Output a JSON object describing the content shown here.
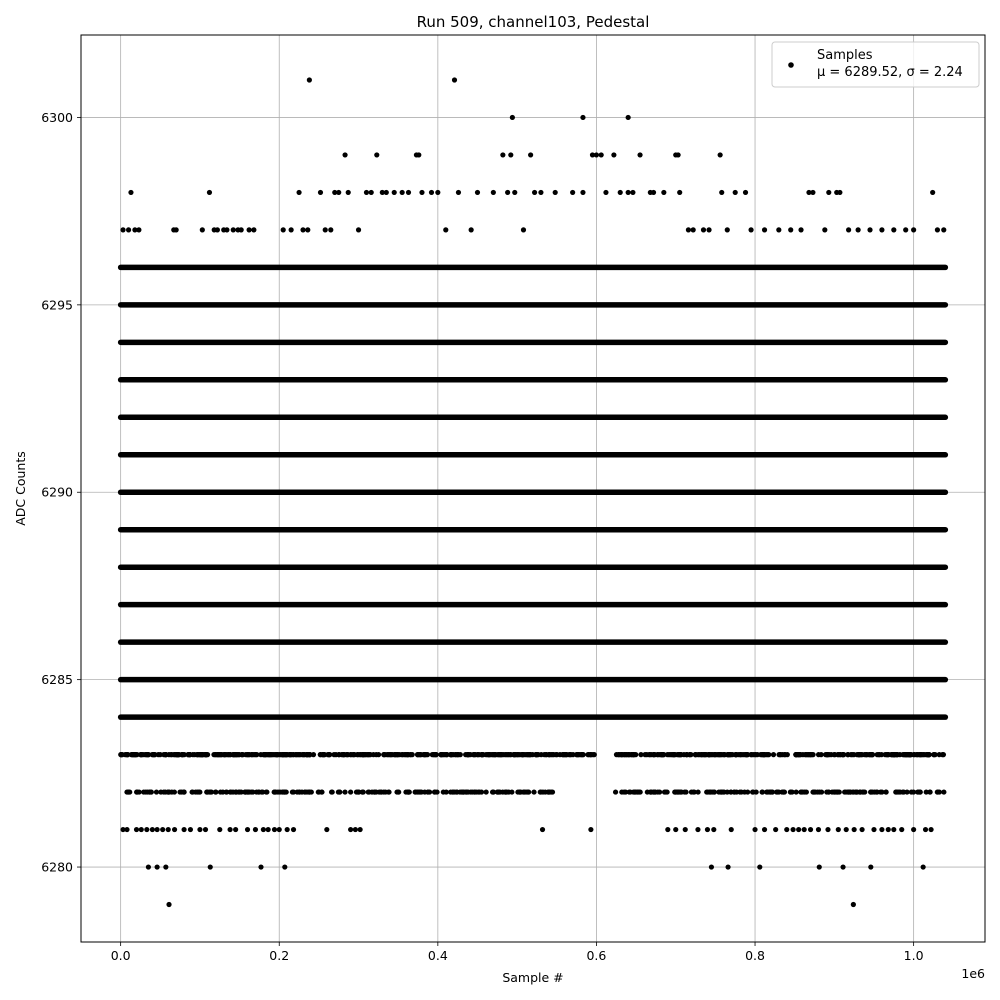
{
  "chart_data": {
    "type": "scatter",
    "title": "Run 509, channel103, Pedestal",
    "xlabel": "Sample #",
    "ylabel": "ADC Counts",
    "x_offset_label": "1e6",
    "xlim": [
      -0.05,
      1.09
    ],
    "ylim": [
      6278,
      6302.2
    ],
    "x_ticks": [
      0.0,
      0.2,
      0.4,
      0.6,
      0.8,
      1.0
    ],
    "x_tick_labels": [
      "0.0",
      "0.2",
      "0.4",
      "0.6",
      "0.8",
      "1.0"
    ],
    "y_ticks": [
      6280,
      6285,
      6290,
      6295,
      6300
    ],
    "y_tick_labels": [
      "6280",
      "6285",
      "6290",
      "6295",
      "6300"
    ],
    "grid": true,
    "legend_position": "top-right",
    "marker_color": "#000000",
    "series": [
      {
        "name": "Samples",
        "stats_label": "μ = 6289.52, σ = 2.24",
        "dense_levels": [
          {
            "y": 6284,
            "x_range": [
              0.0,
              1.04
            ]
          },
          {
            "y": 6285,
            "x_range": [
              0.0,
              1.04
            ]
          },
          {
            "y": 6286,
            "x_range": [
              0.0,
              1.04
            ]
          },
          {
            "y": 6287,
            "x_range": [
              0.0,
              1.04
            ]
          },
          {
            "y": 6288,
            "x_range": [
              0.0,
              1.04
            ]
          },
          {
            "y": 6289,
            "x_range": [
              0.0,
              1.04
            ]
          },
          {
            "y": 6290,
            "x_range": [
              0.0,
              1.04
            ]
          },
          {
            "y": 6291,
            "x_range": [
              0.0,
              1.04
            ]
          },
          {
            "y": 6292,
            "x_range": [
              0.0,
              1.04
            ]
          },
          {
            "y": 6293,
            "x_range": [
              0.0,
              1.04
            ]
          },
          {
            "y": 6294,
            "x_range": [
              0.0,
              1.04
            ]
          },
          {
            "y": 6295,
            "x_range": [
              0.0,
              1.04
            ]
          },
          {
            "y": 6296,
            "x_range": [
              0.0,
              1.04
            ]
          }
        ],
        "sparse_points": [
          [
            0.003,
            6297
          ],
          [
            0.01,
            6297
          ],
          [
            0.013,
            6298
          ],
          [
            0.018,
            6297
          ],
          [
            0.023,
            6297
          ],
          [
            0.067,
            6297
          ],
          [
            0.07,
            6297
          ],
          [
            0.103,
            6297
          ],
          [
            0.112,
            6298
          ],
          [
            0.118,
            6297
          ],
          [
            0.122,
            6297
          ],
          [
            0.13,
            6297
          ],
          [
            0.134,
            6297
          ],
          [
            0.142,
            6297
          ],
          [
            0.148,
            6297
          ],
          [
            0.152,
            6297
          ],
          [
            0.162,
            6297
          ],
          [
            0.168,
            6297
          ],
          [
            0.205,
            6297
          ],
          [
            0.215,
            6297
          ],
          [
            0.225,
            6298
          ],
          [
            0.23,
            6297
          ],
          [
            0.236,
            6297
          ],
          [
            0.252,
            6298
          ],
          [
            0.258,
            6297
          ],
          [
            0.265,
            6297
          ],
          [
            0.27,
            6298
          ],
          [
            0.275,
            6298
          ],
          [
            0.283,
            6299
          ],
          [
            0.287,
            6298
          ],
          [
            0.3,
            6297
          ],
          [
            0.31,
            6298
          ],
          [
            0.316,
            6298
          ],
          [
            0.323,
            6299
          ],
          [
            0.33,
            6298
          ],
          [
            0.335,
            6298
          ],
          [
            0.345,
            6298
          ],
          [
            0.355,
            6298
          ],
          [
            0.363,
            6298
          ],
          [
            0.373,
            6299
          ],
          [
            0.376,
            6299
          ],
          [
            0.38,
            6298
          ],
          [
            0.392,
            6298
          ],
          [
            0.4,
            6298
          ],
          [
            0.41,
            6297
          ],
          [
            0.426,
            6298
          ],
          [
            0.442,
            6297
          ],
          [
            0.45,
            6298
          ],
          [
            0.47,
            6298
          ],
          [
            0.482,
            6299
          ],
          [
            0.488,
            6298
          ],
          [
            0.492,
            6299
          ],
          [
            0.497,
            6298
          ],
          [
            0.508,
            6297
          ],
          [
            0.517,
            6299
          ],
          [
            0.522,
            6298
          ],
          [
            0.53,
            6298
          ],
          [
            0.548,
            6298
          ],
          [
            0.57,
            6298
          ],
          [
            0.583,
            6298
          ],
          [
            0.595,
            6299
          ],
          [
            0.6,
            6299
          ],
          [
            0.606,
            6299
          ],
          [
            0.612,
            6298
          ],
          [
            0.622,
            6299
          ],
          [
            0.63,
            6298
          ],
          [
            0.64,
            6298
          ],
          [
            0.646,
            6298
          ],
          [
            0.655,
            6299
          ],
          [
            0.668,
            6298
          ],
          [
            0.672,
            6298
          ],
          [
            0.685,
            6298
          ],
          [
            0.7,
            6299
          ],
          [
            0.703,
            6299
          ],
          [
            0.705,
            6298
          ],
          [
            0.716,
            6297
          ],
          [
            0.722,
            6297
          ],
          [
            0.735,
            6297
          ],
          [
            0.742,
            6297
          ],
          [
            0.756,
            6299
          ],
          [
            0.758,
            6298
          ],
          [
            0.765,
            6297
          ],
          [
            0.775,
            6298
          ],
          [
            0.788,
            6298
          ],
          [
            0.795,
            6297
          ],
          [
            0.812,
            6297
          ],
          [
            0.83,
            6297
          ],
          [
            0.845,
            6297
          ],
          [
            0.858,
            6297
          ],
          [
            0.868,
            6298
          ],
          [
            0.873,
            6298
          ],
          [
            0.888,
            6297
          ],
          [
            0.893,
            6298
          ],
          [
            0.903,
            6298
          ],
          [
            0.907,
            6298
          ],
          [
            0.918,
            6297
          ],
          [
            0.93,
            6297
          ],
          [
            0.945,
            6297
          ],
          [
            0.96,
            6297
          ],
          [
            0.975,
            6297
          ],
          [
            0.99,
            6297
          ],
          [
            1.0,
            6297
          ],
          [
            1.024,
            6298
          ],
          [
            1.03,
            6297
          ],
          [
            1.038,
            6297
          ],
          [
            0.238,
            6301
          ],
          [
            0.421,
            6301
          ],
          [
            0.494,
            6300
          ],
          [
            0.583,
            6300
          ],
          [
            0.64,
            6300
          ],
          [
            0.003,
            6281
          ],
          [
            0.008,
            6281
          ],
          [
            0.02,
            6281
          ],
          [
            0.026,
            6281
          ],
          [
            0.033,
            6281
          ],
          [
            0.04,
            6281
          ],
          [
            0.046,
            6281
          ],
          [
            0.053,
            6281
          ],
          [
            0.06,
            6281
          ],
          [
            0.068,
            6281
          ],
          [
            0.08,
            6281
          ],
          [
            0.088,
            6281
          ],
          [
            0.1,
            6281
          ],
          [
            0.107,
            6281
          ],
          [
            0.125,
            6281
          ],
          [
            0.138,
            6281
          ],
          [
            0.145,
            6281
          ],
          [
            0.16,
            6281
          ],
          [
            0.17,
            6281
          ],
          [
            0.18,
            6281
          ],
          [
            0.186,
            6281
          ],
          [
            0.194,
            6281
          ],
          [
            0.2,
            6281
          ],
          [
            0.21,
            6281
          ],
          [
            0.218,
            6281
          ],
          [
            0.26,
            6281
          ],
          [
            0.29,
            6281
          ],
          [
            0.296,
            6281
          ],
          [
            0.302,
            6281
          ],
          [
            0.532,
            6281
          ],
          [
            0.593,
            6281
          ],
          [
            0.69,
            6281
          ],
          [
            0.7,
            6281
          ],
          [
            0.712,
            6281
          ],
          [
            0.728,
            6281
          ],
          [
            0.74,
            6281
          ],
          [
            0.748,
            6281
          ],
          [
            0.77,
            6281
          ],
          [
            0.8,
            6281
          ],
          [
            0.812,
            6281
          ],
          [
            0.826,
            6281
          ],
          [
            0.84,
            6281
          ],
          [
            0.848,
            6281
          ],
          [
            0.855,
            6281
          ],
          [
            0.862,
            6281
          ],
          [
            0.87,
            6281
          ],
          [
            0.88,
            6281
          ],
          [
            0.892,
            6281
          ],
          [
            0.905,
            6281
          ],
          [
            0.915,
            6281
          ],
          [
            0.925,
            6281
          ],
          [
            0.935,
            6281
          ],
          [
            0.95,
            6281
          ],
          [
            0.96,
            6281
          ],
          [
            0.968,
            6281
          ],
          [
            0.975,
            6281
          ],
          [
            0.985,
            6281
          ],
          [
            1.0,
            6281
          ],
          [
            1.015,
            6281
          ],
          [
            1.022,
            6281
          ],
          [
            0.035,
            6280
          ],
          [
            0.046,
            6280
          ],
          [
            0.057,
            6280
          ],
          [
            0.113,
            6280
          ],
          [
            0.177,
            6280
          ],
          [
            0.207,
            6280
          ],
          [
            0.745,
            6280
          ],
          [
            0.766,
            6280
          ],
          [
            0.806,
            6280
          ],
          [
            0.881,
            6280
          ],
          [
            0.911,
            6280
          ],
          [
            0.946,
            6280
          ],
          [
            1.012,
            6280
          ],
          [
            0.061,
            6279
          ],
          [
            0.924,
            6279
          ]
        ],
        "level_6283_gaps": [
          [
            0.598,
            0.625
          ]
        ],
        "level_6282_gaps": [
          [
            0.545,
            0.623
          ]
        ]
      }
    ]
  }
}
